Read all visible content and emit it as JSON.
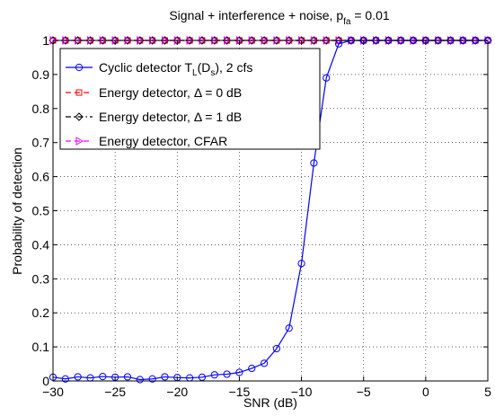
{
  "chart_data": {
    "type": "line",
    "title": "Signal + interference + noise, p",
    "title_sub": "fa",
    "title_tail": " = 0.01",
    "xlabel": "SNR (dB)",
    "ylabel": "Probability of detection",
    "xlim": [
      -30,
      5
    ],
    "ylim": [
      0,
      1
    ],
    "xticks": [
      -30,
      -25,
      -20,
      -15,
      -10,
      -5,
      0,
      5
    ],
    "xtick_labels": [
      "−30",
      "−25",
      "−20",
      "−15",
      "−10",
      "−5",
      "0",
      "5"
    ],
    "yticks": [
      0,
      0.1,
      0.2,
      0.3,
      0.4,
      0.5,
      0.6,
      0.7,
      0.8,
      0.9,
      1
    ],
    "ytick_labels": [
      "0",
      "0.1",
      "0.2",
      "0.3",
      "0.4",
      "0.5",
      "0.6",
      "0.7",
      "0.8",
      "0.9",
      "1"
    ],
    "grid": true,
    "legend_position": "top-left",
    "series": [
      {
        "name": "Cyclic detector T_L(D_s), 2 cfs",
        "legend": {
          "main": "Cyclic detector T",
          "sub1": "L",
          "mid": "(D",
          "sub2": "s",
          "tail": "), 2 cfs"
        },
        "color": "#0000ff",
        "marker": "circle",
        "dash": "solid",
        "x": [
          -30,
          -29,
          -28,
          -27,
          -26,
          -25,
          -24,
          -23,
          -22,
          -21,
          -20,
          -19,
          -18,
          -17,
          -16,
          -15,
          -14,
          -13,
          -12,
          -11,
          -10,
          -9,
          -8,
          -7,
          -6,
          -5,
          -4,
          -3,
          -2,
          -1,
          0,
          1,
          2,
          3,
          4,
          5
        ],
        "y": [
          0.011,
          0.006,
          0.012,
          0.009,
          0.013,
          0.011,
          0.012,
          0.004,
          0.006,
          0.012,
          0.01,
          0.009,
          0.011,
          0.018,
          0.02,
          0.025,
          0.037,
          0.052,
          0.095,
          0.155,
          0.345,
          0.64,
          0.89,
          0.99,
          1.0,
          1.0,
          1.0,
          1.0,
          1.0,
          1.0,
          1.0,
          1.0,
          1.0,
          1.0,
          1.0,
          1.0
        ]
      },
      {
        "name": "Energy detector, Δ = 0 dB",
        "legend": {
          "main": "Energy detector, Δ = 0 dB"
        },
        "color": "#ff0000",
        "marker": "square",
        "dash": "dashed",
        "x": [
          -30,
          -29,
          -28,
          -27,
          -26,
          -25,
          -24,
          -23,
          -22,
          -21,
          -20,
          -19,
          -18,
          -17,
          -16,
          -15,
          -14,
          -13,
          -12,
          -11,
          -10,
          -9,
          -8,
          -7,
          -6,
          -5,
          -4,
          -3,
          -2,
          -1,
          0,
          1,
          2,
          3,
          4,
          5
        ],
        "y": [
          1,
          1,
          1,
          1,
          1,
          1,
          1,
          1,
          1,
          1,
          1,
          1,
          1,
          1,
          1,
          1,
          1,
          1,
          1,
          1,
          1,
          1,
          1,
          1,
          1,
          1,
          1,
          1,
          1,
          1,
          1,
          1,
          1,
          1,
          1,
          1
        ]
      },
      {
        "name": "Energy detector, Δ = 1 dB",
        "legend": {
          "main": "Energy detector, Δ = 1 dB"
        },
        "color": "#000000",
        "marker": "diamond",
        "dash": "dashdot",
        "x": [
          -30,
          -29,
          -28,
          -27,
          -26,
          -25,
          -24,
          -23,
          -22,
          -21,
          -20,
          -19,
          -18,
          -17,
          -16,
          -15,
          -14,
          -13,
          -12,
          -11,
          -10,
          -9,
          -8,
          -7,
          -6,
          -5,
          -4,
          -3,
          -2,
          -1,
          0,
          1,
          2,
          3,
          4,
          5
        ],
        "y": [
          1,
          1,
          1,
          1,
          1,
          1,
          1,
          1,
          1,
          1,
          1,
          1,
          1,
          1,
          1,
          1,
          1,
          1,
          1,
          1,
          1,
          1,
          1,
          1,
          1,
          1,
          1,
          1,
          1,
          1,
          1,
          1,
          1,
          1,
          1,
          1
        ]
      },
      {
        "name": "Energy detector, CFAR",
        "legend": {
          "main": "Energy detector, CFAR"
        },
        "color": "#ff00ff",
        "marker": "triangle-right",
        "dash": "dashed",
        "x": [
          -30,
          -29,
          -28,
          -27,
          -26,
          -25,
          -24,
          -23,
          -22,
          -21,
          -20,
          -19,
          -18,
          -17,
          -16,
          -15,
          -14,
          -13,
          -12,
          -11,
          -10,
          -9,
          -8,
          -7,
          -6,
          -5,
          -4,
          -3,
          -2,
          -1,
          0,
          1,
          2,
          3,
          4,
          5
        ],
        "y": [
          1,
          1,
          1,
          1,
          1,
          1,
          1,
          1,
          1,
          1,
          1,
          1,
          1,
          1,
          1,
          1,
          1,
          1,
          1,
          1,
          1,
          1,
          1,
          1,
          1,
          1,
          1,
          1,
          1,
          1,
          1,
          1,
          1,
          1,
          1,
          1
        ]
      }
    ]
  }
}
